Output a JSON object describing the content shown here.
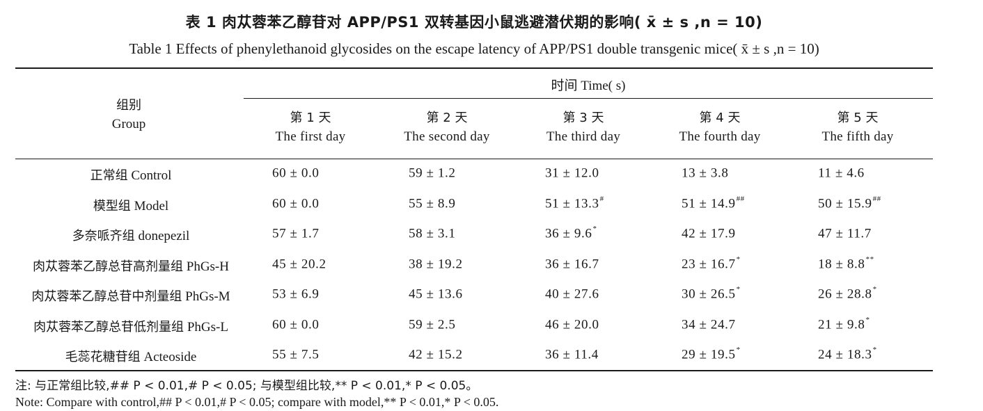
{
  "title_cn": "表 1  肉苁蓉苯乙醇苷对 APP/PS1 双转基因小鼠逃避潜伏期的影响( x̄ ± s ,n = 10)",
  "title_en": "Table 1  Effects of phenylethanoid glycosides on the escape latency of APP/PS1 double transgenic mice( x̄ ± s ,n = 10)",
  "header": {
    "group_cn": "组别",
    "group_en": "Group",
    "time": "时间 Time( s)",
    "days": [
      {
        "cn": "第 1 天",
        "en": "The first day"
      },
      {
        "cn": "第 2 天",
        "en": "The second day"
      },
      {
        "cn": "第 3 天",
        "en": "The third day"
      },
      {
        "cn": "第 4 天",
        "en": "The fourth day"
      },
      {
        "cn": "第 5 天",
        "en": "The fifth day"
      }
    ]
  },
  "rows": [
    {
      "cn": "正常组",
      "en": "Control",
      "values": [
        "60 ± 0.0",
        "59 ± 1.2",
        "31 ± 12.0",
        "13 ± 3.8",
        "11 ± 4.6"
      ],
      "marks": [
        "",
        "",
        "",
        "",
        ""
      ]
    },
    {
      "cn": "模型组",
      "en": "Model",
      "values": [
        "60 ± 0.0",
        "55 ± 8.9",
        "51 ± 13.3",
        "51 ± 14.9",
        "50 ± 15.9"
      ],
      "marks": [
        "",
        "",
        "#",
        "##",
        "##"
      ]
    },
    {
      "cn": "多奈哌齐组",
      "en": "donepezil",
      "values": [
        "57 ± 1.7",
        "58 ± 3.1",
        "36 ± 9.6",
        "42 ± 17.9",
        "47 ± 11.7"
      ],
      "marks": [
        "",
        "",
        "*",
        "",
        ""
      ]
    },
    {
      "cn": "肉苁蓉苯乙醇总苷高剂量组",
      "en": "PhGs-H",
      "values": [
        "45 ± 20.2",
        "38 ± 19.2",
        "36 ± 16.7",
        "23 ± 16.7",
        "18 ± 8.8"
      ],
      "marks": [
        "",
        "",
        "",
        "*",
        "**"
      ]
    },
    {
      "cn": "肉苁蓉苯乙醇总苷中剂量组",
      "en": "PhGs-M",
      "values": [
        "53 ± 6.9",
        "45 ± 13.6",
        "40 ± 27.6",
        "30 ± 26.5",
        "26 ± 28.8"
      ],
      "marks": [
        "",
        "",
        "",
        "*",
        "*"
      ]
    },
    {
      "cn": "肉苁蓉苯乙醇总苷低剂量组",
      "en": "PhGs-L",
      "values": [
        "60 ± 0.0",
        "59 ± 2.5",
        "46 ± 20.0",
        "34 ± 24.7",
        "21 ± 9.8"
      ],
      "marks": [
        "",
        "",
        "",
        "",
        "*"
      ]
    },
    {
      "cn": "毛蕊花糖苷组",
      "en": "Acteoside",
      "values": [
        "55 ± 7.5",
        "42 ± 15.2",
        "36 ± 11.4",
        "29 ± 19.5",
        "24 ± 18.3"
      ],
      "marks": [
        "",
        "",
        "",
        "*",
        "*"
      ]
    }
  ],
  "note_cn": "注: 与正常组比较,## P < 0.01,# P < 0.05; 与模型组比较,** P < 0.01,* P < 0.05。",
  "note_en": "Note: Compare with control,## P < 0.01,# P < 0.05; compare with model,** P < 0.01,* P < 0.05."
}
